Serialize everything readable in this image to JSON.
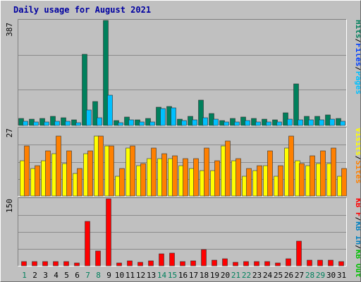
{
  "title": "Daily usage for August 2021",
  "days": [
    "1",
    "2",
    "3",
    "4",
    "5",
    "6",
    "7",
    "8",
    "9",
    "10",
    "11",
    "12",
    "13",
    "14",
    "15",
    "16",
    "17",
    "18",
    "19",
    "20",
    "21",
    "22",
    "23",
    "24",
    "25",
    "26",
    "27",
    "28",
    "29",
    "30",
    "31"
  ],
  "weekend_days": [
    "1",
    "7",
    "8",
    "14",
    "15",
    "21",
    "22",
    "28",
    "29"
  ],
  "colors": {
    "hits": "#00805c",
    "files": "#0040ff",
    "pages": "#00c0ff",
    "visits": "#ffff00",
    "sites": "#ff8000",
    "kbytes_f": "#ff0000",
    "kbytes_in": "#0080c0",
    "kbytes_out": "#00c000",
    "weekday_label": "#000000",
    "weekend_label": "#00805c",
    "separator": "#000000"
  },
  "chart_data": [
    {
      "type": "bar",
      "panel": "top",
      "max_label": "387",
      "ylim": [
        0,
        387
      ],
      "legend": [
        "Hits",
        "Files",
        "Pages"
      ],
      "separator": "/",
      "series": [
        {
          "name": "Hits",
          "color_key": "hits",
          "values": [
            26,
            24,
            25,
            35,
            28,
            22,
            263,
            88,
            387,
            19,
            32,
            22,
            26,
            67,
            70,
            24,
            33,
            93,
            44,
            19,
            25,
            31,
            25,
            23,
            21,
            46,
            153,
            33,
            34,
            38,
            25
          ]
        },
        {
          "name": "Pages",
          "color_key": "pages",
          "values": [
            16,
            13,
            14,
            15,
            15,
            11,
            58,
            28,
            112,
            11,
            20,
            13,
            13,
            63,
            66,
            19,
            21,
            29,
            23,
            12,
            14,
            17,
            14,
            13,
            12,
            24,
            22,
            22,
            22,
            23,
            16
          ]
        }
      ]
    },
    {
      "type": "bar",
      "panel": "middle",
      "max_label": "27",
      "ylim": [
        0,
        27
      ],
      "legend": [
        "Visits",
        "Sites"
      ],
      "separator": "/",
      "series": [
        {
          "name": "Visits",
          "color_key": "visits",
          "values": [
            14,
            11,
            14,
            17,
            13,
            9,
            17,
            24,
            20,
            8,
            19,
            12,
            15,
            15,
            15,
            12,
            11,
            10,
            10,
            20,
            14,
            8,
            10,
            12,
            8,
            19,
            14,
            12,
            13,
            13,
            8
          ]
        },
        {
          "name": "Sites",
          "color_key": "sites",
          "values": [
            20,
            12,
            18,
            24,
            18,
            11,
            18,
            24,
            20,
            11,
            20,
            13,
            19,
            17,
            16,
            15,
            15,
            19,
            14,
            22,
            15,
            11,
            12,
            18,
            12,
            24,
            13,
            16,
            18,
            19,
            11
          ]
        }
      ]
    },
    {
      "type": "bar",
      "panel": "bottom",
      "max_label": "150",
      "ylim": [
        0,
        150
      ],
      "legend": [
        "KB F",
        "KB In",
        "KB Out"
      ],
      "separator": "/",
      "series": [
        {
          "name": "KB F",
          "color_key": "kbytes_f",
          "values": [
            9,
            9,
            9,
            10,
            10,
            7,
            100,
            33,
            150,
            6,
            11,
            8,
            11,
            27,
            28,
            10,
            11,
            37,
            12,
            15,
            8,
            9,
            9,
            10,
            7,
            16,
            56,
            12,
            12,
            12,
            10
          ]
        }
      ]
    }
  ]
}
